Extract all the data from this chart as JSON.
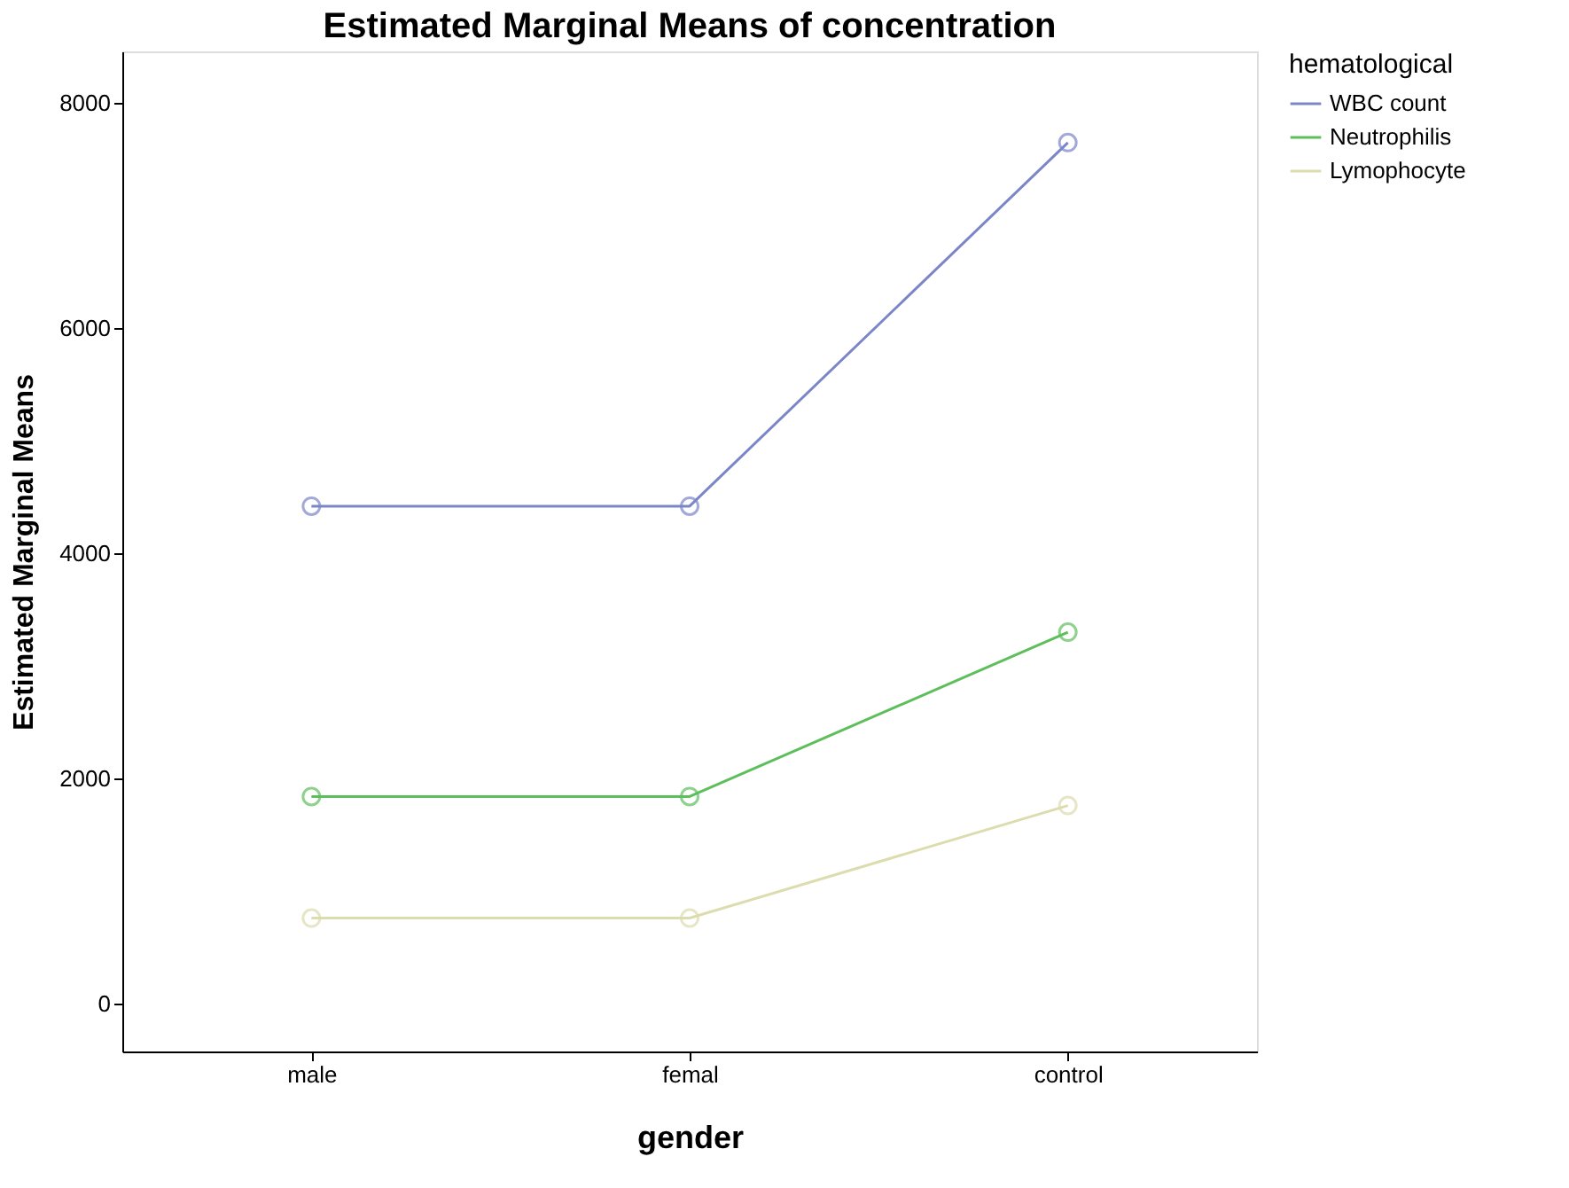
{
  "chart_data": {
    "type": "line",
    "title": "Estimated Marginal Means of concentration",
    "xlabel": "gender",
    "ylabel": "Estimated Marginal Means",
    "legend_title": "hematological",
    "categories": [
      "male",
      "femal",
      "control"
    ],
    "series": [
      {
        "name": "WBC count",
        "color": "#7b86c8",
        "values": [
          4420,
          4420,
          7650
        ]
      },
      {
        "name": "Neutrophilis",
        "color": "#5cbf5c",
        "values": [
          1840,
          1840,
          3300
        ]
      },
      {
        "name": "Lymophocyte",
        "color": "#dcdcae",
        "values": [
          760,
          760,
          1760
        ]
      }
    ],
    "ylim": [
      -425,
      8460
    ],
    "yticks": [
      0,
      2000,
      4000,
      6000,
      8000
    ],
    "grid": false,
    "legend": "top right",
    "marker": "circle",
    "line_style": "solid"
  }
}
